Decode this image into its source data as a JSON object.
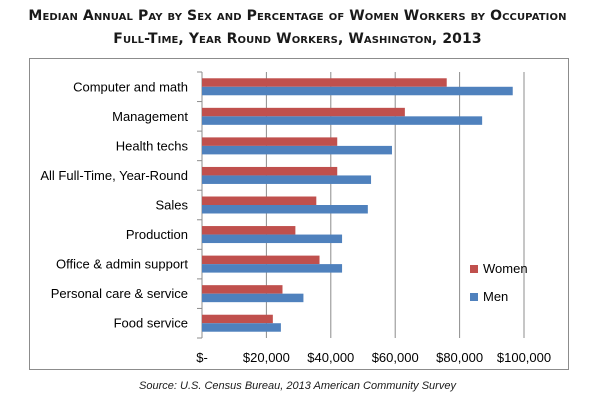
{
  "chart_data": {
    "type": "bar",
    "orientation": "horizontal",
    "title": "Median Annual Pay by Sex and Percentage of Women Workers by Occupation",
    "subtitle": "Full-Time, Year Round Workers, Washington, 2013",
    "categories": [
      "Computer and math",
      "Management",
      "Health techs",
      "All Full-Time, Year-Round",
      "Sales",
      "Production",
      "Office & admin support",
      "Personal care & service",
      "Food service"
    ],
    "series": [
      {
        "name": "Women",
        "color": "#c0504d",
        "values": [
          76000,
          63000,
          42000,
          42000,
          35500,
          29000,
          36500,
          25000,
          22000
        ]
      },
      {
        "name": "Men",
        "color": "#4f81bd",
        "values": [
          96500,
          87000,
          59000,
          52500,
          51500,
          43500,
          43500,
          31500,
          24500
        ]
      }
    ],
    "xlim": [
      0,
      100000
    ],
    "xticks": [
      0,
      20000,
      40000,
      60000,
      80000,
      100000
    ],
    "xtick_labels": [
      "$-",
      "$20,000",
      "$40,000",
      "$60,000",
      "$80,000",
      "$100,000"
    ],
    "xlabel": "",
    "ylabel": "",
    "grid": "vertical",
    "legend_position": "right"
  },
  "source": "Source: U.S. Census Bureau, 2013 American Community Survey"
}
